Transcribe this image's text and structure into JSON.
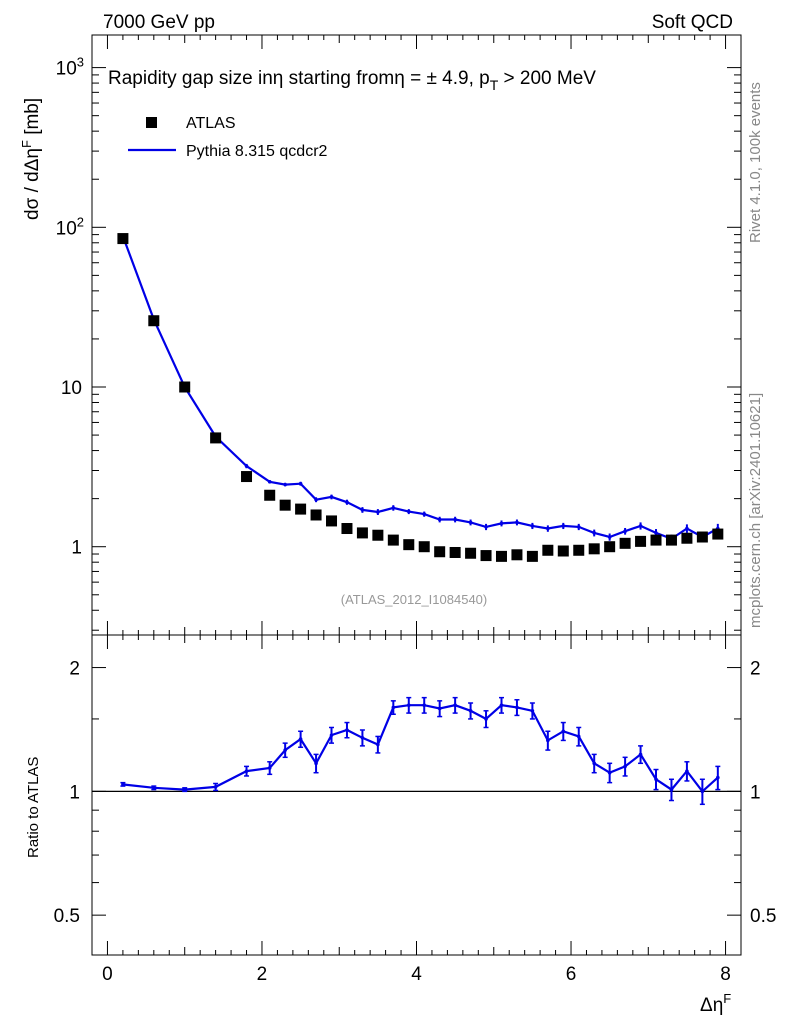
{
  "header": {
    "energy_label": "7000 GeV pp",
    "process_label": "Soft QCD",
    "title_main": "Rapidity gap size in",
    "title_eta1": "η",
    "title_starting": " starting from",
    "title_eta2": "η",
    "title_cut": " = ± 4.9, p",
    "title_sub": "T",
    "title_tail": " > 200 MeV"
  },
  "side": {
    "rivet_label": "Rivet 4.1.0,  100k events",
    "mcplots_label": "mcplots.cern.ch [arXiv:2401.10621]"
  },
  "watermark": "(ATLAS_2012_I1084540)",
  "labels": {
    "main_ylabel": "dσ / dΔη",
    "main_ylabel_sup": "F",
    "main_ylabel_unit": " [mb]",
    "ratio_ylabel": "Ratio to ATLAS",
    "xlabel": "Δη",
    "xlabel_sup": "F"
  },
  "ticks": {
    "x": [
      "0",
      "2",
      "4",
      "6",
      "8"
    ],
    "main_y": [
      {
        "value": 1000,
        "base": "10",
        "exp": "3"
      },
      {
        "value": 100,
        "base": "10",
        "exp": "2"
      },
      {
        "value": 10,
        "base": "10",
        "exp": ""
      },
      {
        "value": 1,
        "base": "1",
        "exp": ""
      }
    ],
    "ratio_y": [
      "2",
      "1",
      "0.5"
    ]
  },
  "colors": {
    "data": "#000000",
    "mc": "#0000e6"
  },
  "chart_data": [
    {
      "type": "scatter",
      "title": "Rapidity gap size in η starting from η = ± 4.9, pT > 200 MeV",
      "xlabel": "Δη^F",
      "ylabel": "dσ / dΔη^F [mb]",
      "yscale": "log",
      "xlim": [
        -0.2,
        8.2
      ],
      "ylim": [
        0.28,
        1600
      ],
      "legend_position": "top-left",
      "x": [
        0.2,
        0.6,
        1.0,
        1.4,
        1.8,
        2.1,
        2.3,
        2.5,
        2.7,
        2.9,
        3.1,
        3.3,
        3.5,
        3.7,
        3.9,
        4.1,
        4.3,
        4.5,
        4.7,
        4.9,
        5.1,
        5.3,
        5.5,
        5.7,
        5.9,
        6.1,
        6.3,
        6.5,
        6.7,
        6.9,
        7.1,
        7.3,
        7.5,
        7.7,
        7.9
      ],
      "series": [
        {
          "name": "ATLAS",
          "style": "markers",
          "values": [
            85,
            26,
            10,
            4.8,
            2.75,
            2.1,
            1.82,
            1.72,
            1.58,
            1.45,
            1.3,
            1.22,
            1.18,
            1.1,
            1.03,
            1.0,
            0.93,
            0.92,
            0.91,
            0.88,
            0.87,
            0.89,
            0.87,
            0.95,
            0.94,
            0.95,
            0.97,
            1.0,
            1.05,
            1.08,
            1.1,
            1.1,
            1.13,
            1.15,
            1.2
          ]
        },
        {
          "name": "Pythia 8.315 qcdcr2",
          "style": "line",
          "values": [
            88,
            26.5,
            10.0,
            4.9,
            3.2,
            2.55,
            2.45,
            2.48,
            1.97,
            2.05,
            1.9,
            1.7,
            1.65,
            1.75,
            1.66,
            1.6,
            1.48,
            1.48,
            1.42,
            1.33,
            1.4,
            1.42,
            1.35,
            1.3,
            1.35,
            1.33,
            1.22,
            1.15,
            1.25,
            1.35,
            1.22,
            1.12,
            1.3,
            1.15,
            1.3
          ],
          "errors": [
            3,
            0.8,
            0.3,
            0.15,
            0.1,
            0.06,
            0.06,
            0.07,
            0.07,
            0.07,
            0.07,
            0.07,
            0.07,
            0.07,
            0.06,
            0.06,
            0.06,
            0.06,
            0.06,
            0.06,
            0.06,
            0.06,
            0.06,
            0.06,
            0.06,
            0.06,
            0.06,
            0.06,
            0.06,
            0.07,
            0.07,
            0.07,
            0.08,
            0.08,
            0.09
          ]
        }
      ]
    },
    {
      "type": "line",
      "title": "",
      "xlabel": "Δη^F",
      "ylabel": "Ratio to ATLAS",
      "yscale": "log",
      "xlim": [
        -0.2,
        8.2
      ],
      "ylim": [
        0.4,
        2.4
      ],
      "reference_line": 1,
      "x": [
        0.2,
        0.6,
        1.0,
        1.4,
        1.8,
        2.1,
        2.3,
        2.5,
        2.7,
        2.9,
        3.1,
        3.3,
        3.5,
        3.7,
        3.9,
        4.1,
        4.3,
        4.5,
        4.7,
        4.9,
        5.1,
        5.3,
        5.5,
        5.7,
        5.9,
        6.1,
        6.3,
        6.5,
        6.7,
        6.9,
        7.1,
        7.3,
        7.5,
        7.7,
        7.9
      ],
      "series": [
        {
          "name": "Pythia 8.315 qcdcr2 / ATLAS",
          "values": [
            1.04,
            1.02,
            1.01,
            1.025,
            1.12,
            1.14,
            1.26,
            1.34,
            1.17,
            1.37,
            1.41,
            1.35,
            1.3,
            1.6,
            1.62,
            1.62,
            1.59,
            1.62,
            1.57,
            1.5,
            1.62,
            1.6,
            1.57,
            1.33,
            1.4,
            1.36,
            1.17,
            1.11,
            1.15,
            1.23,
            1.07,
            1.01,
            1.12,
            1.0,
            1.08
          ],
          "errors": [
            0.01,
            0.01,
            0.01,
            0.02,
            0.03,
            0.04,
            0.05,
            0.06,
            0.06,
            0.06,
            0.06,
            0.06,
            0.06,
            0.06,
            0.07,
            0.07,
            0.07,
            0.07,
            0.07,
            0.07,
            0.07,
            0.07,
            0.07,
            0.07,
            0.07,
            0.07,
            0.06,
            0.06,
            0.06,
            0.06,
            0.06,
            0.06,
            0.06,
            0.07,
            0.07
          ]
        }
      ]
    }
  ]
}
